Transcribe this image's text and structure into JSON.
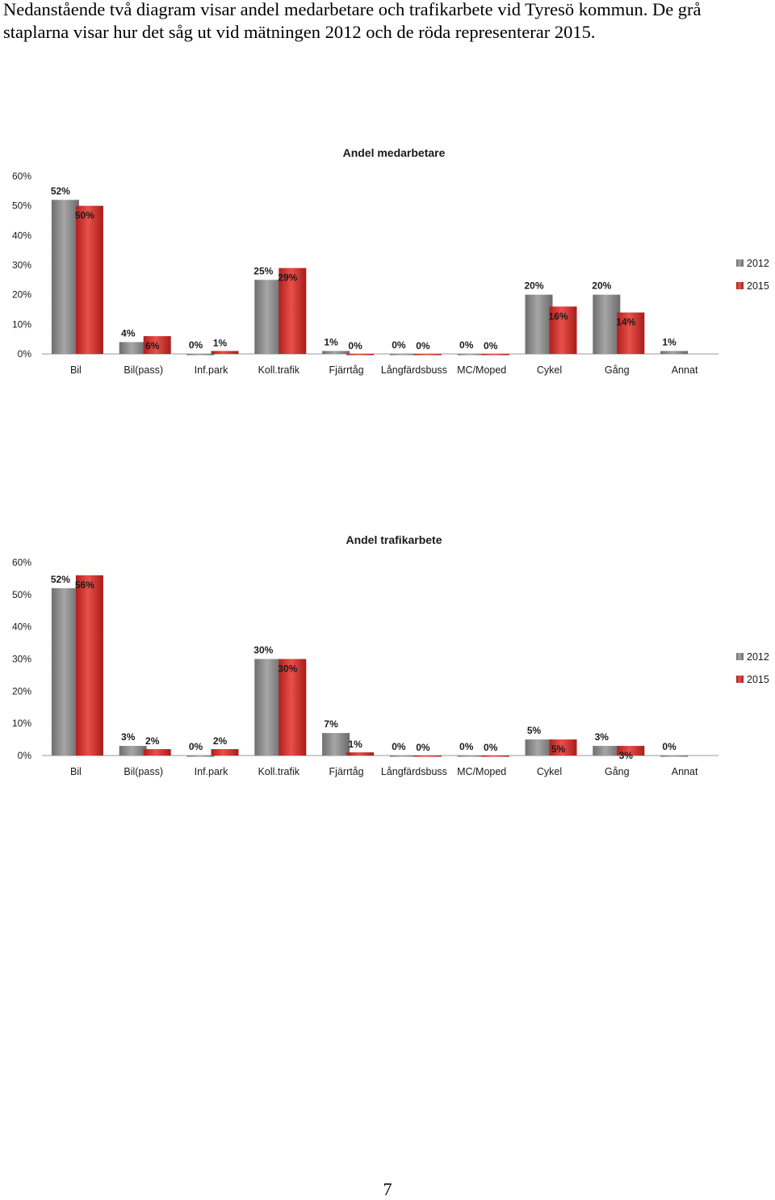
{
  "intro": {
    "line1": "Nedanstående två diagram visar andel medarbetare och trafikarbete vid Tyresö kommun. De grå",
    "line2": "staplarna visar hur det såg ut vid mätningen 2012 och de röda representerar 2015."
  },
  "page_number": "7",
  "colors": {
    "series_2012": "#8c8c8c",
    "series_2015": "#d7312f",
    "axis": "#9a9a9a",
    "text": "#1a1a1a"
  },
  "chart_data": [
    {
      "type": "bar",
      "title": "Andel medarbetare",
      "categories": [
        "Bil",
        "Bil(pass)",
        "Inf.park",
        "Koll.trafik",
        "Fjärrtåg",
        "Långfärdsbuss",
        "MC/Moped",
        "Cykel",
        "Gång",
        "Annat"
      ],
      "series": [
        {
          "name": "2012",
          "values": [
            52,
            4,
            0,
            25,
            1,
            0,
            0,
            20,
            20,
            1
          ],
          "labels": [
            "52%",
            "4%",
            "0%",
            "25%",
            "1%",
            "0%",
            "0%",
            "20%",
            "20%",
            "1%"
          ]
        },
        {
          "name": "2015",
          "values": [
            50,
            6,
            1,
            29,
            0,
            0,
            0,
            16,
            14,
            0
          ],
          "labels": [
            "50%",
            "6%",
            "1%",
            "29%",
            "0%",
            "0%",
            "0%",
            "16%",
            "14%",
            ""
          ]
        }
      ],
      "yticks": [
        "0%",
        "10%",
        "20%",
        "30%",
        "40%",
        "50%",
        "60%"
      ],
      "ylim": [
        0,
        60
      ],
      "legend": "right",
      "grid": false
    },
    {
      "type": "bar",
      "title": "Andel trafikarbete",
      "categories": [
        "Bil",
        "Bil(pass)",
        "Inf.park",
        "Koll.trafik",
        "Fjärrtåg",
        "Långfärdsbuss",
        "MC/Moped",
        "Cykel",
        "Gång",
        "Annat"
      ],
      "series": [
        {
          "name": "2012",
          "values": [
            52,
            3,
            0,
            30,
            7,
            0,
            0,
            5,
            3,
            0
          ],
          "labels": [
            "52%",
            "3%",
            "0%",
            "30%",
            "7%",
            "0%",
            "0%",
            "5%",
            "3%",
            "0%"
          ]
        },
        {
          "name": "2015",
          "values": [
            56,
            2,
            2,
            30,
            1,
            0,
            0,
            5,
            3,
            0
          ],
          "labels": [
            "56%",
            "2%",
            "2%",
            "30%",
            "1%",
            "0%",
            "0%",
            "5%",
            "3%",
            ""
          ]
        }
      ],
      "yticks": [
        "0%",
        "10%",
        "20%",
        "30%",
        "40%",
        "50%",
        "60%"
      ],
      "ylim": [
        0,
        60
      ],
      "legend": "right",
      "grid": false
    }
  ]
}
